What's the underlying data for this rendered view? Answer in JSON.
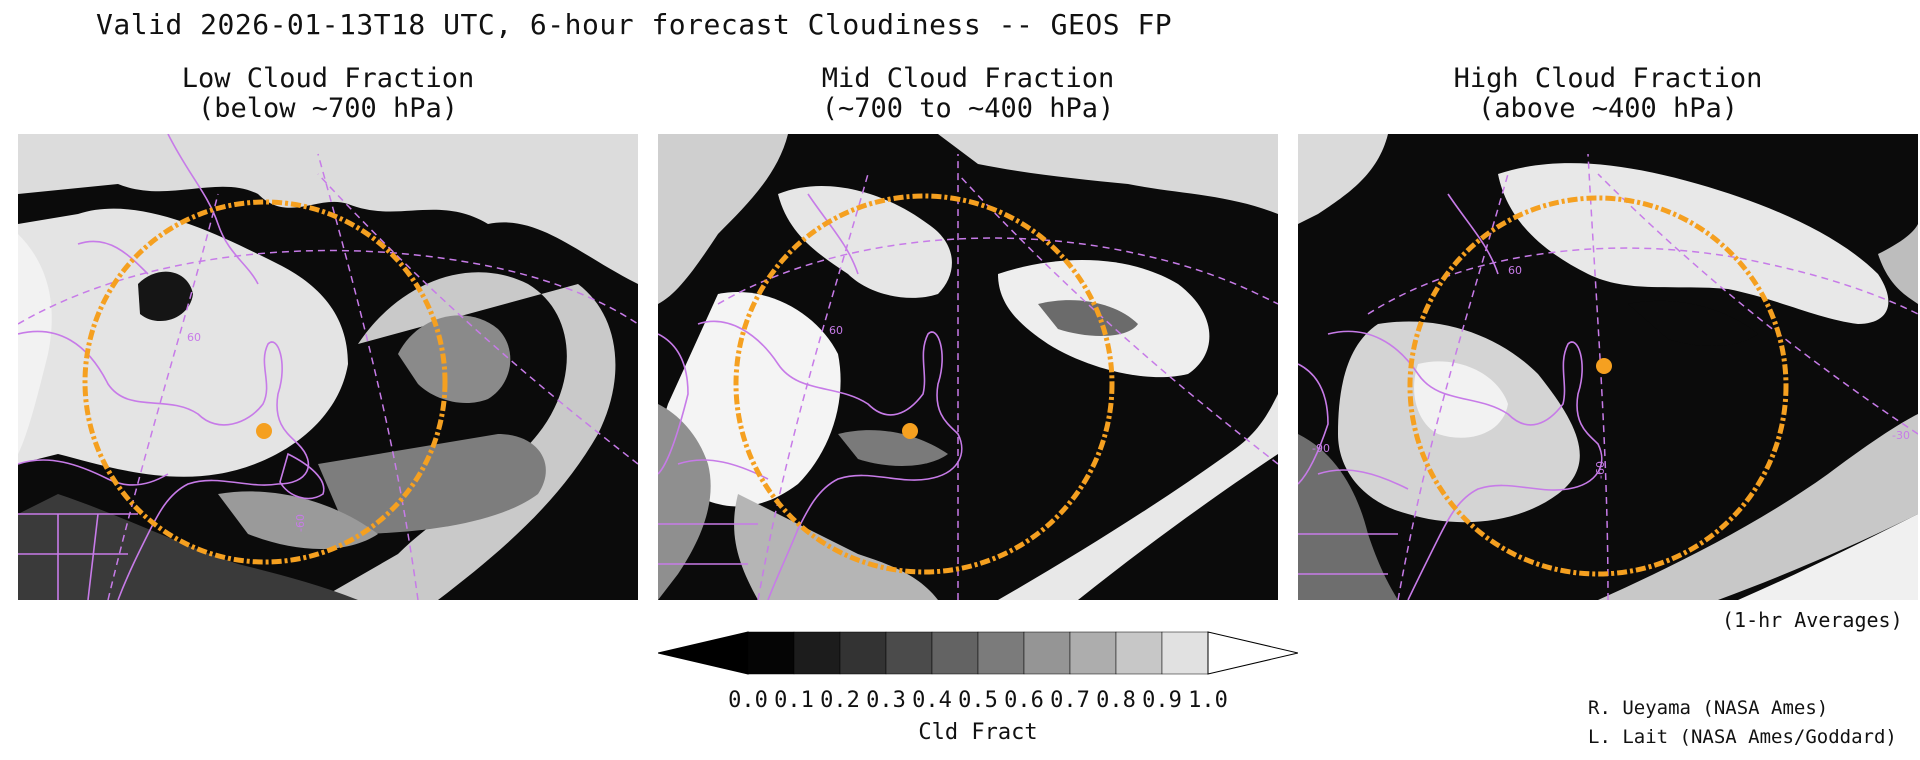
{
  "title": "Valid 2026-01-13T18 UTC, 6-hour forecast Cloudiness -- GEOS FP",
  "panels": [
    {
      "title_line1": "Low Cloud Fraction",
      "title_line2": "(below ~700 hPa)"
    },
    {
      "title_line1": "Mid Cloud Fraction",
      "title_line2": "(~700 to ~400 hPa)"
    },
    {
      "title_line1": "High Cloud Fraction",
      "title_line2": "(above ~400 hPa)"
    }
  ],
  "grid_labels": {
    "lat60": "60",
    "lon60": "-60",
    "lon30": "-30",
    "lon90": "-90"
  },
  "colorbar": {
    "title": "Cld Fract",
    "ticks": [
      "0.0",
      "0.1",
      "0.2",
      "0.3",
      "0.4",
      "0.5",
      "0.6",
      "0.7",
      "0.8",
      "0.9",
      "1.0"
    ],
    "colors": [
      "#050505",
      "#1c1c1c",
      "#333333",
      "#4b4b4b",
      "#636363",
      "#7b7b7b",
      "#959595",
      "#adadad",
      "#c7c7c7",
      "#e1e1e1"
    ],
    "under_color": "#000000",
    "over_color": "#ffffff"
  },
  "note": "(1-hr Averages)",
  "credits": [
    "R. Ueyama (NASA Ames)",
    "L. Lait (NASA Ames/Goddard)"
  ],
  "colors": {
    "coastline": "#c77be8",
    "range_ring": "#f5a020",
    "site_marker": "#f5a020"
  }
}
